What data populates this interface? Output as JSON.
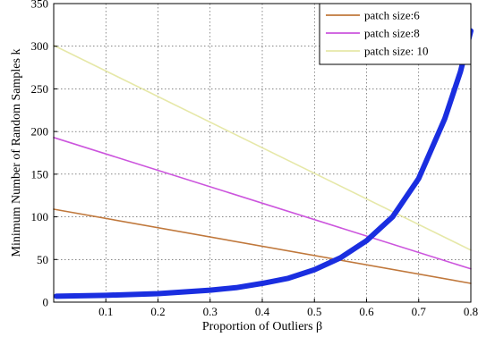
{
  "chart_data": {
    "type": "line",
    "xlabel": "Proportion of Outliers β",
    "ylabel": "Minimum Number of Random Samples k",
    "xlim": [
      0,
      0.8
    ],
    "ylim": [
      0,
      350
    ],
    "x_ticks": [
      "0.1",
      "0.2",
      "0.3",
      "0.4",
      "0.5",
      "0.6",
      "0.7",
      "0.8"
    ],
    "y_ticks": [
      "0",
      "50",
      "100",
      "150",
      "200",
      "250",
      "300",
      "350"
    ],
    "grid": true,
    "legend_position": "top-right",
    "series": [
      {
        "name": "patch size:6",
        "color": "#c0783c",
        "x": [
          0.0,
          0.8
        ],
        "y": [
          109,
          22
        ]
      },
      {
        "name": "patch size:8",
        "color": "#cc55dd",
        "x": [
          0.0,
          0.8
        ],
        "y": [
          193,
          39
        ]
      },
      {
        "name": "patch size: 10",
        "color": "#e6e8a8",
        "x": [
          0.0,
          0.8
        ],
        "y": [
          301,
          61
        ]
      },
      {
        "name": "",
        "color": "#1a2ee0",
        "x": [
          0.005,
          0.1,
          0.2,
          0.3,
          0.35,
          0.4,
          0.45,
          0.5,
          0.55,
          0.6,
          0.65,
          0.7,
          0.75,
          0.78,
          0.8
        ],
        "y": [
          7,
          8,
          10,
          14,
          17,
          22,
          28,
          38,
          52,
          72,
          100,
          145,
          215,
          270,
          318
        ]
      }
    ]
  }
}
